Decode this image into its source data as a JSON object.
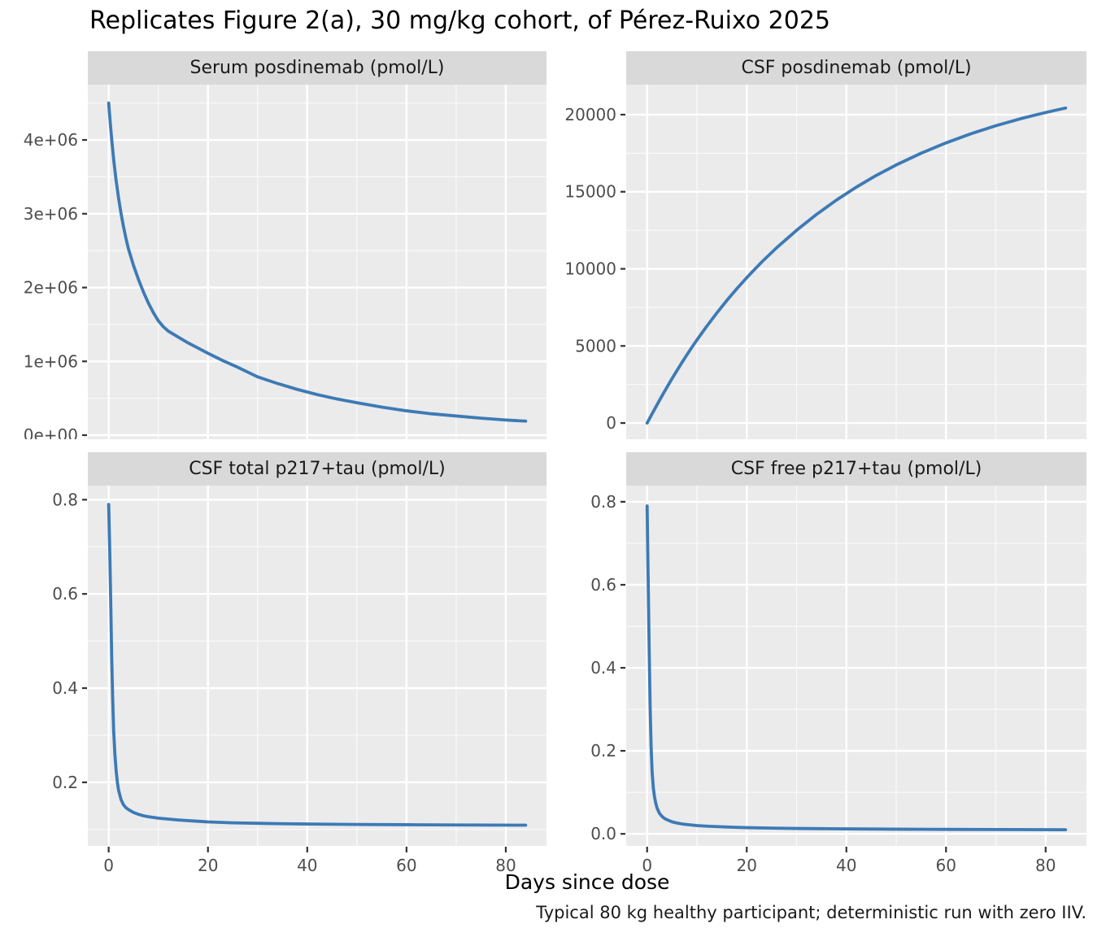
{
  "title": "Replicates Figure 2(a), 30 mg/kg cohort, of Pérez-Ruixo 2025",
  "caption": "Typical 80 kg healthy participant; deterministic run with zero IIV.",
  "x_axis": {
    "label": "Days since dose",
    "domain": [
      -4.2,
      88.2
    ],
    "major_ticks": [
      0,
      20,
      40,
      60,
      80
    ],
    "tick_labels": [
      "0",
      "20",
      "40",
      "60",
      "80"
    ],
    "minor_ticks": [
      10,
      30,
      50,
      70
    ]
  },
  "style": {
    "line_color": "#3D7AB5",
    "panel_bg": "#EBEBEB",
    "strip_bg": "#D9D9D9",
    "strip_text": "#1A1A1A",
    "axis_text_color": "#4D4D4D",
    "tick_mark_color": "#333333",
    "grid_color": "#FFFFFF",
    "title_color": "#000000"
  },
  "chart_data": [
    {
      "key": "serum",
      "type": "line",
      "title": "Serum posdinemab (pmol/L)",
      "ylim": [
        -55000,
        4750000
      ],
      "y_major": [
        {
          "v": 0,
          "label": "0e+00"
        },
        {
          "v": 1000000,
          "label": "1e+06"
        },
        {
          "v": 2000000,
          "label": "2e+06"
        },
        {
          "v": 3000000,
          "label": "3e+06"
        },
        {
          "v": 4000000,
          "label": "4e+06"
        }
      ],
      "y_minor": [
        500000,
        1500000,
        2500000,
        3500000,
        4500000
      ],
      "x": [
        0,
        0.25,
        0.5,
        0.75,
        1,
        1.25,
        1.5,
        2,
        2.5,
        3,
        3.5,
        4,
        5,
        6,
        7,
        8,
        9,
        10,
        11,
        12,
        14,
        16,
        18,
        20,
        23,
        26,
        30,
        34,
        38,
        42,
        46,
        50,
        55,
        60,
        65,
        70,
        75,
        80,
        84
      ],
      "y": [
        4500000,
        4290000,
        4090000,
        3910000,
        3740000,
        3590000,
        3450000,
        3210000,
        3000000,
        2820000,
        2660000,
        2520000,
        2300000,
        2110000,
        1940000,
        1790000,
        1660000,
        1550000,
        1470000,
        1410000,
        1330000,
        1250000,
        1180000,
        1110000,
        1010000,
        920000,
        790000,
        700000,
        620000,
        550000,
        490000,
        440000,
        380000,
        330000,
        290000,
        260000,
        230000,
        205000,
        190000
      ]
    },
    {
      "key": "csf",
      "type": "line",
      "title": "CSF posdinemab (pmol/L)",
      "ylim": [
        -1050,
        21950
      ],
      "y_major": [
        {
          "v": 0,
          "label": "0"
        },
        {
          "v": 5000,
          "label": "5000"
        },
        {
          "v": 10000,
          "label": "10000"
        },
        {
          "v": 15000,
          "label": "15000"
        },
        {
          "v": 20000,
          "label": "20000"
        }
      ],
      "y_minor": [
        2500,
        7500,
        12500,
        17500
      ],
      "x": [
        0,
        1,
        2,
        3,
        4,
        5,
        6,
        7,
        8,
        9,
        10,
        12,
        14,
        16,
        18,
        20,
        23,
        26,
        30,
        34,
        38,
        42,
        46,
        50,
        55,
        60,
        65,
        70,
        75,
        80,
        84
      ],
      "y": [
        0,
        600,
        1190,
        1770,
        2330,
        2880,
        3410,
        3930,
        4430,
        4920,
        5390,
        6290,
        7140,
        7950,
        8710,
        9430,
        10440,
        11370,
        12500,
        13530,
        14460,
        15300,
        16060,
        16740,
        17500,
        18170,
        18760,
        19280,
        19740,
        20140,
        20430
      ]
    },
    {
      "key": "csf_total_p217tau",
      "type": "line",
      "title": "CSF total p217+tau (pmol/L)",
      "ylim": [
        0.065,
        0.83
      ],
      "y_major": [
        {
          "v": 0.2,
          "label": "0.2"
        },
        {
          "v": 0.4,
          "label": "0.4"
        },
        {
          "v": 0.6,
          "label": "0.6"
        },
        {
          "v": 0.8,
          "label": "0.8"
        }
      ],
      "y_minor": [
        0.1,
        0.3,
        0.5,
        0.7
      ],
      "x": [
        0,
        0.2,
        0.4,
        0.6,
        0.8,
        1,
        1.25,
        1.5,
        1.75,
        2,
        2.5,
        3,
        3.5,
        4,
        5,
        6,
        7,
        8,
        10,
        12,
        14,
        17,
        20,
        25,
        30,
        35,
        40,
        50,
        60,
        70,
        84
      ],
      "y": [
        0.79,
        0.7,
        0.59,
        0.47,
        0.38,
        0.31,
        0.26,
        0.225,
        0.2,
        0.183,
        0.163,
        0.152,
        0.146,
        0.142,
        0.136,
        0.132,
        0.129,
        0.127,
        0.124,
        0.122,
        0.12,
        0.118,
        0.116,
        0.114,
        0.113,
        0.112,
        0.1115,
        0.1105,
        0.11,
        0.1095,
        0.109
      ]
    },
    {
      "key": "csf_free_p217tau",
      "type": "line",
      "title": "CSF free p217+tau (pmol/L)",
      "ylim": [
        -0.029,
        0.839
      ],
      "y_major": [
        {
          "v": 0.0,
          "label": "0.0"
        },
        {
          "v": 0.2,
          "label": "0.2"
        },
        {
          "v": 0.4,
          "label": "0.4"
        },
        {
          "v": 0.6,
          "label": "0.6"
        },
        {
          "v": 0.8,
          "label": "0.8"
        }
      ],
      "y_minor": [
        0.1,
        0.3,
        0.5,
        0.7
      ],
      "x": [
        0,
        0.2,
        0.4,
        0.6,
        0.8,
        1,
        1.25,
        1.5,
        1.75,
        2,
        2.5,
        3,
        3.5,
        4,
        5,
        6,
        7,
        8,
        10,
        12,
        14,
        17,
        20,
        25,
        30,
        35,
        40,
        50,
        60,
        70,
        84
      ],
      "y": [
        0.79,
        0.62,
        0.45,
        0.31,
        0.21,
        0.15,
        0.11,
        0.088,
        0.073,
        0.062,
        0.049,
        0.042,
        0.037,
        0.034,
        0.029,
        0.026,
        0.024,
        0.0225,
        0.02,
        0.0185,
        0.0175,
        0.016,
        0.015,
        0.0138,
        0.013,
        0.0125,
        0.012,
        0.0113,
        0.0108,
        0.0105,
        0.01
      ]
    }
  ]
}
